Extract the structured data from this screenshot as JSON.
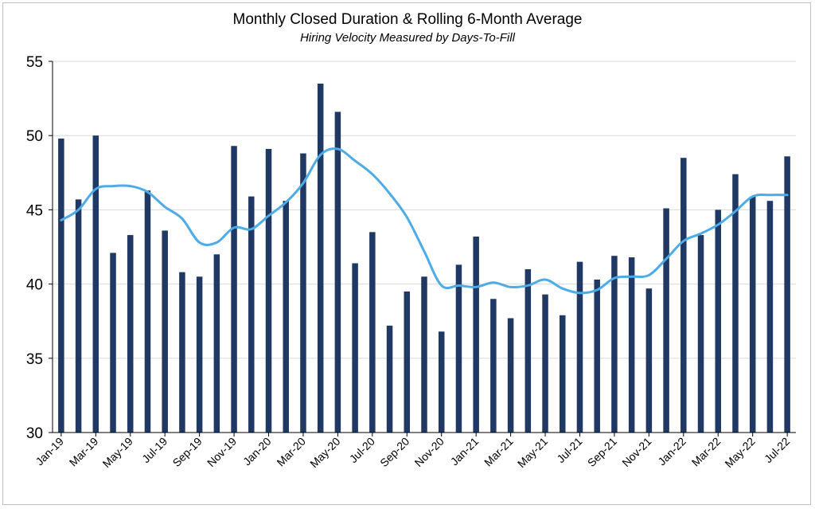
{
  "chart_data": {
    "type": "bar",
    "title": "Monthly Closed Duration & Rolling 6-Month Average",
    "subtitle": "Hiring Velocity Measured by Days-To-Fill",
    "xlabel": "",
    "ylabel": "",
    "ylim": [
      30,
      55
    ],
    "yticks": [
      30,
      35,
      40,
      45,
      50,
      55
    ],
    "grid": true,
    "legend": "none",
    "categories": [
      "Jan-19",
      "Feb-19",
      "Mar-19",
      "Apr-19",
      "May-19",
      "Jun-19",
      "Jul-19",
      "Aug-19",
      "Sep-19",
      "Oct-19",
      "Nov-19",
      "Dec-19",
      "Jan-20",
      "Feb-20",
      "Mar-20",
      "Apr-20",
      "May-20",
      "Jun-20",
      "Jul-20",
      "Aug-20",
      "Sep-20",
      "Oct-20",
      "Nov-20",
      "Dec-20",
      "Jan-21",
      "Feb-21",
      "Mar-21",
      "Apr-21",
      "May-21",
      "Jun-21",
      "Jul-21",
      "Aug-21",
      "Sep-21",
      "Oct-21",
      "Nov-21",
      "Dec-21",
      "Jan-22",
      "Feb-22",
      "Mar-22",
      "Apr-22",
      "May-22",
      "Jun-22",
      "Jul-22"
    ],
    "tick_labels": [
      "Jan-19",
      "Mar-19",
      "May-19",
      "Jul-19",
      "Sep-19",
      "Nov-19",
      "Jan-20",
      "Mar-20",
      "May-20",
      "Jul-20",
      "Sep-20",
      "Nov-20",
      "Jan-21",
      "Mar-21",
      "May-21",
      "Jul-21",
      "Sep-21",
      "Nov-21",
      "Jan-22",
      "Mar-22",
      "May-22",
      "Jul-22"
    ],
    "series": [
      {
        "type": "bar",
        "color": "#1f3864",
        "values": [
          49.8,
          45.7,
          50.0,
          42.1,
          43.3,
          46.3,
          43.6,
          40.8,
          40.5,
          42.0,
          49.3,
          45.9,
          49.1,
          45.6,
          48.8,
          53.5,
          51.6,
          41.4,
          43.5,
          37.2,
          39.5,
          40.5,
          36.8,
          41.3,
          43.2,
          39.0,
          37.7,
          41.0,
          39.3,
          37.9,
          41.5,
          40.3,
          41.9,
          41.8,
          39.7,
          45.1,
          48.5,
          43.3,
          45.0,
          47.4,
          45.9,
          45.6,
          48.6
        ]
      },
      {
        "type": "line",
        "color": "#4dabe8",
        "values": [
          44.3,
          45.0,
          46.4,
          46.6,
          46.6,
          46.2,
          45.2,
          44.4,
          42.8,
          42.8,
          43.8,
          43.7,
          44.6,
          45.5,
          46.8,
          48.7,
          49.1,
          48.3,
          47.4,
          46.1,
          44.5,
          42.2,
          39.9,
          39.9,
          39.8,
          40.1,
          39.8,
          39.9,
          40.3,
          39.7,
          39.4,
          39.6,
          40.4,
          40.5,
          40.6,
          41.7,
          42.9,
          43.4,
          44.0,
          44.9,
          45.9,
          46.0,
          46.0
        ]
      }
    ]
  }
}
